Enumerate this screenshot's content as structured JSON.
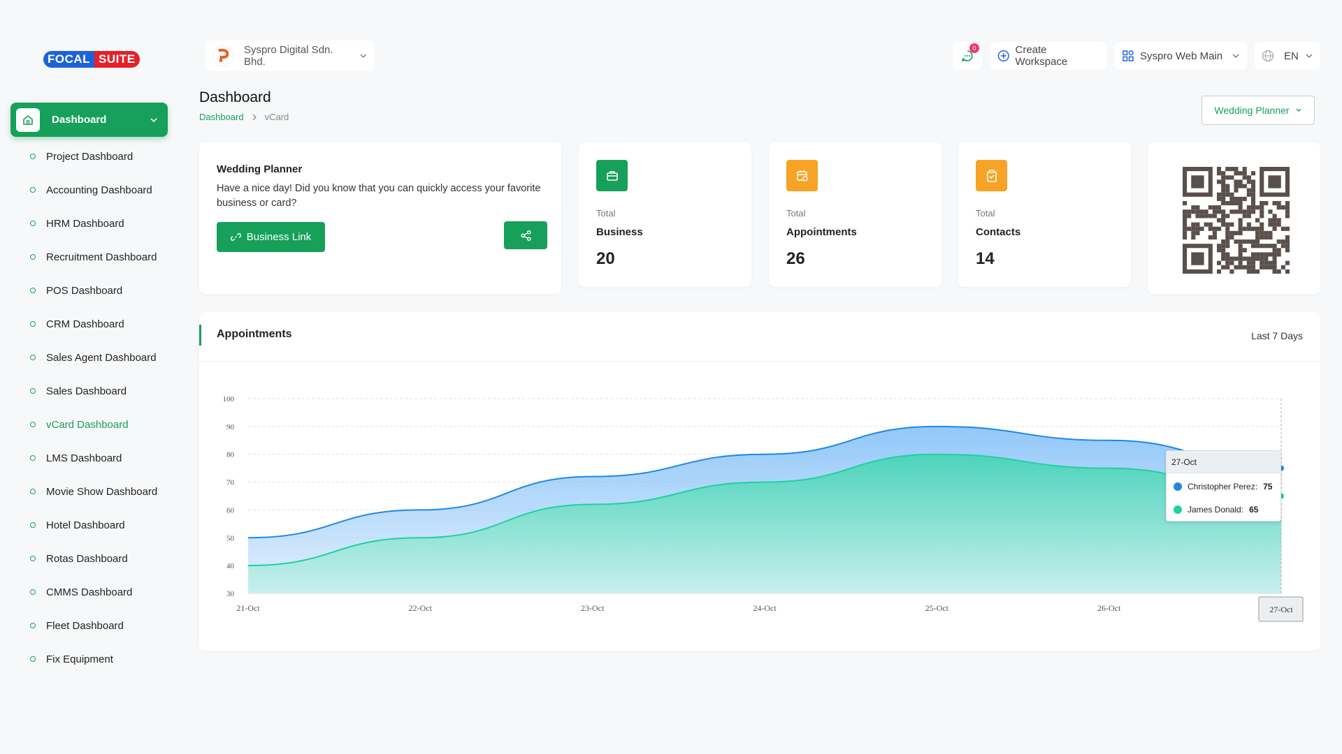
{
  "brand": {
    "first": "FOCAL",
    "second": "SUITE"
  },
  "header": {
    "company": "Syspro Digital Sdn. Bhd.",
    "notifications": 0,
    "create_workspace": "Create Workspace",
    "workspace": "Syspro Web Main",
    "language": "EN"
  },
  "sidebar": {
    "main": "Dashboard",
    "items": [
      "Project Dashboard",
      "Accounting Dashboard",
      "HRM Dashboard",
      "Recruitment Dashboard",
      "POS Dashboard",
      "CRM Dashboard",
      "Sales Agent Dashboard",
      "Sales Dashboard",
      "vCard Dashboard",
      "LMS Dashboard",
      "Movie Show Dashboard",
      "Hotel Dashboard",
      "Rotas Dashboard",
      "CMMS Dashboard",
      "Fleet Dashboard",
      "Fix Equipment"
    ]
  },
  "page": {
    "title": "Dashboard",
    "breadcrumb": [
      "Dashboard",
      "vCard"
    ],
    "business_selector": "Wedding Planner"
  },
  "welcome": {
    "title": "Wedding Planner",
    "text": "Have a nice day! Did you know that you can quickly access your favorite business or card?",
    "button": "Business Link"
  },
  "stats": [
    {
      "label": "Total",
      "title": "Business",
      "value": 20
    },
    {
      "label": "Total",
      "title": "Appointments",
      "value": 26
    },
    {
      "label": "Total",
      "title": "Contacts",
      "value": 14
    }
  ],
  "chart_data": {
    "type": "area",
    "title": "Appointments",
    "period": "Last 7 Days",
    "categories": [
      "21-Oct",
      "22-Oct",
      "23-Oct",
      "24-Oct",
      "25-Oct",
      "26-Oct",
      "27-Oct"
    ],
    "series": [
      {
        "name": "Christopher Perez",
        "color": "#1e88e5",
        "values": [
          50,
          60,
          72,
          80,
          90,
          85,
          75
        ]
      },
      {
        "name": "James Donald",
        "color": "#1fd1a0",
        "values": [
          40,
          50,
          62,
          70,
          80,
          75,
          65
        ]
      }
    ],
    "ylim": [
      30,
      100
    ],
    "yticks": [
      30,
      40,
      50,
      60,
      70,
      80,
      90,
      100
    ],
    "grid": true
  }
}
